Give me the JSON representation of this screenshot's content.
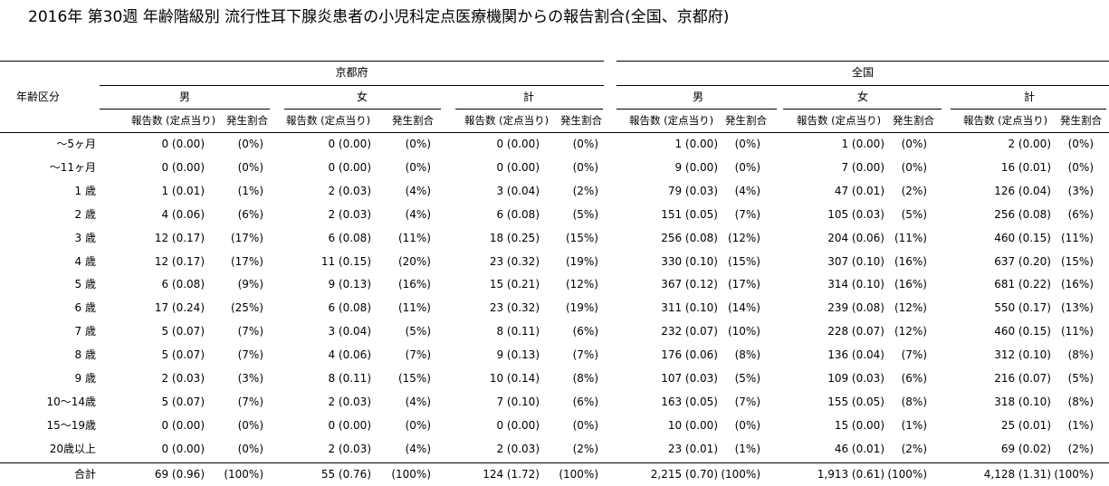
{
  "title": "2016年 第30週 年齢階級別 流行性耳下腺炎患者の小児科定点医療機関からの報告割合(全国、京都府)",
  "headers": {
    "row_label": "年齢区分",
    "regions": [
      "京都府",
      "全国"
    ],
    "sexes": [
      "男",
      "女",
      "計"
    ],
    "count_col": "報告数 (定点当り)",
    "ratio_col": "発生割合"
  },
  "rows": [
    {
      "age": "～5ヶ月",
      "values": [
        [
          "0 (0.00)",
          "(0%)"
        ],
        [
          "0 (0.00)",
          "(0%)"
        ],
        [
          "0 (0.00)",
          "(0%)"
        ],
        [
          "1 (0.00)",
          "(0%)"
        ],
        [
          "1 (0.00)",
          "(0%)"
        ],
        [
          "2 (0.00)",
          "(0%)"
        ]
      ]
    },
    {
      "age": "～11ヶ月",
      "values": [
        [
          "0 (0.00)",
          "(0%)"
        ],
        [
          "0 (0.00)",
          "(0%)"
        ],
        [
          "0 (0.00)",
          "(0%)"
        ],
        [
          "9 (0.00)",
          "(0%)"
        ],
        [
          "7 (0.00)",
          "(0%)"
        ],
        [
          "16 (0.01)",
          "(0%)"
        ]
      ]
    },
    {
      "age": "1 歳",
      "values": [
        [
          "1 (0.01)",
          "(1%)"
        ],
        [
          "2 (0.03)",
          "(4%)"
        ],
        [
          "3 (0.04)",
          "(2%)"
        ],
        [
          "79 (0.03)",
          "(4%)"
        ],
        [
          "47 (0.01)",
          "(2%)"
        ],
        [
          "126 (0.04)",
          "(3%)"
        ]
      ]
    },
    {
      "age": "2 歳",
      "values": [
        [
          "4 (0.06)",
          "(6%)"
        ],
        [
          "2 (0.03)",
          "(4%)"
        ],
        [
          "6 (0.08)",
          "(5%)"
        ],
        [
          "151 (0.05)",
          "(7%)"
        ],
        [
          "105 (0.03)",
          "(5%)"
        ],
        [
          "256 (0.08)",
          "(6%)"
        ]
      ]
    },
    {
      "age": "3 歳",
      "values": [
        [
          "12 (0.17)",
          "(17%)"
        ],
        [
          "6 (0.08)",
          "(11%)"
        ],
        [
          "18 (0.25)",
          "(15%)"
        ],
        [
          "256 (0.08)",
          "(12%)"
        ],
        [
          "204 (0.06)",
          "(11%)"
        ],
        [
          "460 (0.15)",
          "(11%)"
        ]
      ]
    },
    {
      "age": "4 歳",
      "values": [
        [
          "12 (0.17)",
          "(17%)"
        ],
        [
          "11 (0.15)",
          "(20%)"
        ],
        [
          "23 (0.32)",
          "(19%)"
        ],
        [
          "330 (0.10)",
          "(15%)"
        ],
        [
          "307 (0.10)",
          "(16%)"
        ],
        [
          "637 (0.20)",
          "(15%)"
        ]
      ]
    },
    {
      "age": "5 歳",
      "values": [
        [
          "6 (0.08)",
          "(9%)"
        ],
        [
          "9 (0.13)",
          "(16%)"
        ],
        [
          "15 (0.21)",
          "(12%)"
        ],
        [
          "367 (0.12)",
          "(17%)"
        ],
        [
          "314 (0.10)",
          "(16%)"
        ],
        [
          "681 (0.22)",
          "(16%)"
        ]
      ]
    },
    {
      "age": "6 歳",
      "values": [
        [
          "17 (0.24)",
          "(25%)"
        ],
        [
          "6 (0.08)",
          "(11%)"
        ],
        [
          "23 (0.32)",
          "(19%)"
        ],
        [
          "311 (0.10)",
          "(14%)"
        ],
        [
          "239 (0.08)",
          "(12%)"
        ],
        [
          "550 (0.17)",
          "(13%)"
        ]
      ]
    },
    {
      "age": "7 歳",
      "values": [
        [
          "5 (0.07)",
          "(7%)"
        ],
        [
          "3 (0.04)",
          "(5%)"
        ],
        [
          "8 (0.11)",
          "(6%)"
        ],
        [
          "232 (0.07)",
          "(10%)"
        ],
        [
          "228 (0.07)",
          "(12%)"
        ],
        [
          "460 (0.15)",
          "(11%)"
        ]
      ]
    },
    {
      "age": "8 歳",
      "values": [
        [
          "5 (0.07)",
          "(7%)"
        ],
        [
          "4 (0.06)",
          "(7%)"
        ],
        [
          "9 (0.13)",
          "(7%)"
        ],
        [
          "176 (0.06)",
          "(8%)"
        ],
        [
          "136 (0.04)",
          "(7%)"
        ],
        [
          "312 (0.10)",
          "(8%)"
        ]
      ]
    },
    {
      "age": "9 歳",
      "values": [
        [
          "2 (0.03)",
          "(3%)"
        ],
        [
          "8 (0.11)",
          "(15%)"
        ],
        [
          "10 (0.14)",
          "(8%)"
        ],
        [
          "107 (0.03)",
          "(5%)"
        ],
        [
          "109 (0.03)",
          "(6%)"
        ],
        [
          "216 (0.07)",
          "(5%)"
        ]
      ]
    },
    {
      "age": "10～14歳",
      "values": [
        [
          "5 (0.07)",
          "(7%)"
        ],
        [
          "2 (0.03)",
          "(4%)"
        ],
        [
          "7 (0.10)",
          "(6%)"
        ],
        [
          "163 (0.05)",
          "(7%)"
        ],
        [
          "155 (0.05)",
          "(8%)"
        ],
        [
          "318 (0.10)",
          "(8%)"
        ]
      ]
    },
    {
      "age": "15～19歳",
      "values": [
        [
          "0 (0.00)",
          "(0%)"
        ],
        [
          "0 (0.00)",
          "(0%)"
        ],
        [
          "0 (0.00)",
          "(0%)"
        ],
        [
          "10 (0.00)",
          "(0%)"
        ],
        [
          "15 (0.00)",
          "(1%)"
        ],
        [
          "25 (0.01)",
          "(1%)"
        ]
      ]
    },
    {
      "age": "20歳以上",
      "values": [
        [
          "0 (0.00)",
          "(0%)"
        ],
        [
          "2 (0.03)",
          "(4%)"
        ],
        [
          "2 (0.03)",
          "(2%)"
        ],
        [
          "23 (0.01)",
          "(1%)"
        ],
        [
          "46 (0.01)",
          "(2%)"
        ],
        [
          "69 (0.02)",
          "(2%)"
        ]
      ]
    }
  ],
  "total": {
    "age": "合計",
    "values": [
      [
        "69 (0.96)",
        "(100%)"
      ],
      [
        "55 (0.76)",
        "(100%)"
      ],
      [
        "124 (1.72)",
        "(100%)"
      ],
      [
        "2,215 (0.70)",
        "(100%)"
      ],
      [
        "1,913 (0.61)",
        "(100%)"
      ],
      [
        "4,128 (1.31)",
        "(100%)"
      ]
    ]
  }
}
